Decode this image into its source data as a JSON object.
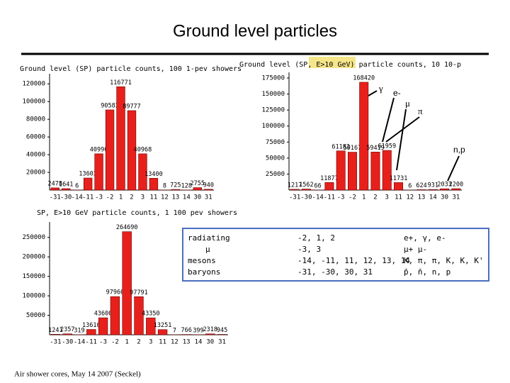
{
  "title": "Ground level particles",
  "footer": "Air shower cores, May 14 2007 (Seckel)",
  "particle_labels": [
    "γ",
    "e-",
    "μ",
    "π",
    "n,p"
  ],
  "table": {
    "rows": [
      [
        "radiating",
        "-2, 1, 2",
        "e+, γ, e-"
      ],
      [
        "μ",
        "-3, 3",
        "μ+ μ-"
      ],
      [
        "mesons",
        "-14, -11, 11, 12, 13, 14",
        "K, π, π, K, K, K'"
      ],
      [
        "baryons",
        "-31, -30, 30, 31",
        "p̄, n̄, n, p"
      ]
    ]
  },
  "chart_data": [
    {
      "type": "bar",
      "title": "Ground level (SP) particle counts, 100 1-pev showers",
      "categories": [
        "-31",
        "-30",
        "-14",
        "-11",
        "-3",
        "-2",
        "1",
        "2",
        "3",
        "11",
        "12",
        "13",
        "14",
        "30",
        "31"
      ],
      "values": [
        2478,
        1641,
        6,
        13603,
        40990,
        90583,
        116771,
        89777,
        40968,
        13400,
        8,
        725,
        128,
        2755,
        940
      ],
      "color": "#e8201c",
      "ylim": [
        0,
        125000
      ],
      "yticks": [
        20000,
        40000,
        60000,
        80000,
        100000,
        120000
      ]
    },
    {
      "type": "bar",
      "title": "Ground level (SP, E>10 GeV) particle counts, 10 10-p",
      "categories": [
        "-31",
        "-30",
        "-14",
        "-11",
        "-3",
        "-2",
        "1",
        "2",
        "3",
        "11",
        "12",
        "13",
        "14",
        "30",
        "31"
      ],
      "values": [
        1217,
        1562,
        66,
        11877,
        61182,
        59167,
        168420,
        59419,
        61959,
        11731,
        6,
        624,
        931,
        2033,
        2200
      ],
      "color": "#e8201c",
      "ylim": [
        0,
        175000
      ],
      "yticks": [
        25000,
        50000,
        75000,
        100000,
        125000,
        150000,
        175000
      ]
    },
    {
      "type": "bar",
      "title": "SP, E>10 GeV particle counts, 1 100 pev showers",
      "categories": [
        "-31",
        "-30",
        "-14",
        "-11",
        "-3",
        "-2",
        "1",
        "2",
        "3",
        "11",
        "12",
        "13",
        "14",
        "30",
        "31"
      ],
      "values": [
        1241,
        2357,
        319,
        13616,
        43600,
        97960,
        264690,
        97791,
        43350,
        13251,
        7,
        766,
        399,
        2318,
        945
      ],
      "color": "#e8201c",
      "ylim": [
        0,
        275000
      ],
      "yticks": [
        50000,
        100000,
        150000,
        200000,
        250000
      ]
    }
  ]
}
